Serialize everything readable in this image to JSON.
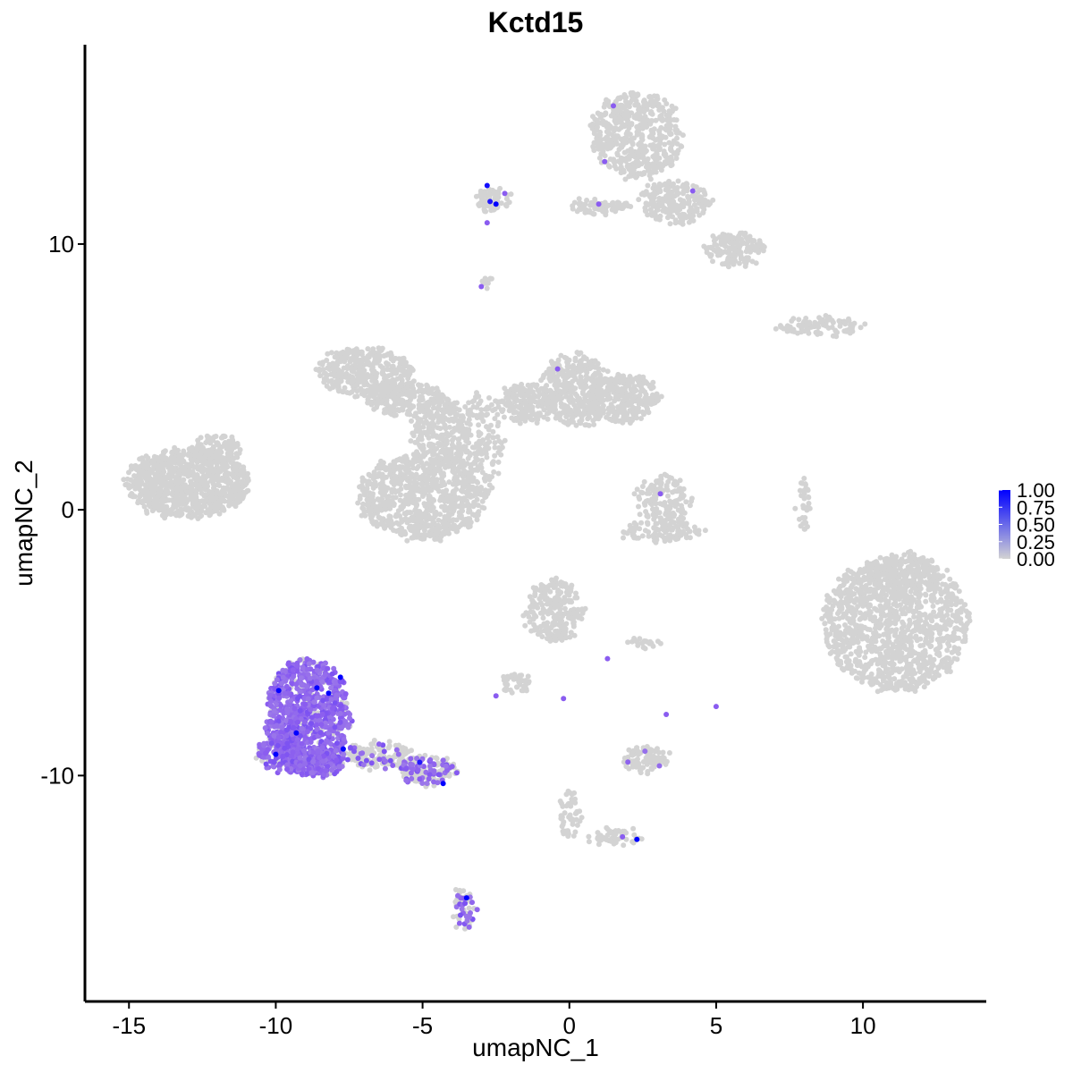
{
  "chart_data": {
    "type": "scatter",
    "title": "Kctd15",
    "xlabel": "umapNC_1",
    "ylabel": "umapNC_2",
    "xlim": [
      -16.5,
      14.2
    ],
    "ylim": [
      -18.5,
      17.5
    ],
    "x_ticks": [
      -15,
      -10,
      -5,
      0,
      5,
      10
    ],
    "x_tick_labels": [
      "-15",
      "-10",
      "-5",
      "0",
      "5",
      "10"
    ],
    "y_ticks": [
      -10,
      0,
      10
    ],
    "y_tick_labels": [
      "-10",
      "0",
      "10"
    ],
    "grid": false,
    "legend": {
      "placement": "right",
      "type": "colorbar",
      "min": 0,
      "max": 1,
      "labels": [
        "1.00",
        "0.75",
        "0.50",
        "0.25",
        "0.00"
      ],
      "low_color": "#d3d3d3",
      "high_color": "#0000ff"
    },
    "colors": {
      "background_cells": "#d3d3d3",
      "mid_expression": "#8a5cf0",
      "high_expression": "#1a00ee",
      "max_expression": "#0000ff"
    },
    "clusters": [
      {
        "cx": -13.0,
        "cy": 1.0,
        "rx": 2.1,
        "ry": 1.3,
        "n": 900,
        "expr": 0
      },
      {
        "cx": -12.0,
        "cy": 2.3,
        "rx": 0.8,
        "ry": 0.5,
        "n": 120,
        "expr": 0
      },
      {
        "cx": -7.0,
        "cy": 5.2,
        "rx": 1.6,
        "ry": 0.9,
        "n": 350,
        "expr": 0
      },
      {
        "cx": -5.7,
        "cy": 4.2,
        "rx": 1.3,
        "ry": 0.7,
        "n": 220,
        "expr": 0
      },
      {
        "cx": -4.4,
        "cy": 3.0,
        "rx": 1.0,
        "ry": 1.3,
        "n": 260,
        "expr": 0
      },
      {
        "cx": -5.0,
        "cy": 0.5,
        "rx": 2.2,
        "ry": 1.6,
        "n": 800,
        "expr": 0
      },
      {
        "cx": -3.0,
        "cy": 2.5,
        "rx": 0.7,
        "ry": 2.0,
        "n": 160,
        "expr": 0
      },
      {
        "cx": -1.5,
        "cy": 4.0,
        "rx": 1.0,
        "ry": 0.7,
        "n": 200,
        "expr": 0
      },
      {
        "cx": 0.2,
        "cy": 4.5,
        "rx": 1.2,
        "ry": 1.4,
        "n": 360,
        "expr": 0
      },
      {
        "cx": 1.8,
        "cy": 4.2,
        "rx": 1.3,
        "ry": 0.9,
        "n": 300,
        "expr": 0
      },
      {
        "cx": 2.3,
        "cy": 14.1,
        "rx": 1.6,
        "ry": 1.6,
        "n": 520,
        "expr": 0
      },
      {
        "cx": 3.6,
        "cy": 11.6,
        "rx": 1.2,
        "ry": 0.8,
        "n": 220,
        "expr": 0
      },
      {
        "cx": 5.6,
        "cy": 9.8,
        "rx": 1.0,
        "ry": 0.6,
        "n": 160,
        "expr": 0
      },
      {
        "cx": 1.0,
        "cy": 11.4,
        "rx": 1.0,
        "ry": 0.25,
        "n": 90,
        "expr": 0
      },
      {
        "cx": -2.6,
        "cy": 11.6,
        "rx": 0.6,
        "ry": 0.5,
        "n": 70,
        "expr": 0
      },
      {
        "cx": -2.8,
        "cy": 8.5,
        "rx": 0.25,
        "ry": 0.25,
        "n": 10,
        "expr": 0
      },
      {
        "cx": 8.5,
        "cy": 6.9,
        "rx": 1.5,
        "ry": 0.35,
        "n": 90,
        "expr": 0
      },
      {
        "cx": 3.2,
        "cy": 0.4,
        "rx": 1.0,
        "ry": 0.9,
        "n": 140,
        "expr": 0
      },
      {
        "cx": 3.2,
        "cy": -0.8,
        "rx": 1.4,
        "ry": 0.4,
        "n": 110,
        "expr": 0
      },
      {
        "cx": 8.0,
        "cy": 0.2,
        "rx": 0.2,
        "ry": 1.0,
        "n": 35,
        "expr": 0
      },
      {
        "cx": 11.1,
        "cy": -4.3,
        "rx": 2.5,
        "ry": 2.5,
        "n": 1200,
        "expr": 0
      },
      {
        "cx": 11.4,
        "cy": -2.4,
        "rx": 1.4,
        "ry": 0.8,
        "n": 160,
        "expr": 0
      },
      {
        "cx": -0.5,
        "cy": -3.8,
        "rx": 1.0,
        "ry": 1.2,
        "n": 240,
        "expr": 0
      },
      {
        "cx": -1.8,
        "cy": -6.5,
        "rx": 0.6,
        "ry": 0.35,
        "n": 40,
        "expr": 0
      },
      {
        "cx": 2.6,
        "cy": -5.0,
        "rx": 0.6,
        "ry": 0.2,
        "n": 20,
        "expr": 0
      },
      {
        "cx": 2.6,
        "cy": -9.4,
        "rx": 0.8,
        "ry": 0.5,
        "n": 90,
        "expr": 0.05
      },
      {
        "cx": 0.0,
        "cy": -11.5,
        "rx": 0.35,
        "ry": 0.9,
        "n": 50,
        "expr": 0.05
      },
      {
        "cx": 1.5,
        "cy": -12.3,
        "rx": 1.0,
        "ry": 0.3,
        "n": 50,
        "expr": 0.05
      },
      {
        "cx": -3.6,
        "cy": -15.0,
        "rx": 0.35,
        "ry": 0.8,
        "n": 60,
        "expr": 0.3
      },
      {
        "cx": -6.5,
        "cy": -9.2,
        "rx": 1.2,
        "ry": 0.5,
        "n": 160,
        "expr": 0.15
      },
      {
        "cx": -4.8,
        "cy": -9.8,
        "rx": 1.0,
        "ry": 0.5,
        "n": 170,
        "expr": 0.35
      },
      {
        "cx": -8.9,
        "cy": -7.8,
        "rx": 1.45,
        "ry": 2.2,
        "n": 900,
        "expr": 0.85
      },
      {
        "cx": -9.7,
        "cy": -9.1,
        "rx": 0.9,
        "ry": 0.7,
        "n": 200,
        "expr": 0.8
      },
      {
        "cx": -8.3,
        "cy": -9.5,
        "rx": 0.7,
        "ry": 0.5,
        "n": 130,
        "expr": 0.7
      }
    ],
    "highlighted_cells": [
      {
        "x": -2.8,
        "y": 12.2,
        "value": 0.95
      },
      {
        "x": -2.7,
        "y": 11.6,
        "value": 0.9
      },
      {
        "x": -2.5,
        "y": 11.5,
        "value": 1.0
      },
      {
        "x": -2.2,
        "y": 11.9,
        "value": 0.6
      },
      {
        "x": -2.8,
        "y": 10.8,
        "value": 0.6
      },
      {
        "x": -3.0,
        "y": 8.4,
        "value": 0.6
      },
      {
        "x": 1.5,
        "y": 15.2,
        "value": 0.6
      },
      {
        "x": 1.2,
        "y": 13.1,
        "value": 0.6
      },
      {
        "x": 1.0,
        "y": 11.5,
        "value": 0.6
      },
      {
        "x": 4.2,
        "y": 12.0,
        "value": 0.6
      },
      {
        "x": -0.4,
        "y": 5.3,
        "value": 0.6
      },
      {
        "x": 3.1,
        "y": 0.6,
        "value": 0.6
      },
      {
        "x": -9.9,
        "y": -6.8,
        "value": 1.0
      },
      {
        "x": -8.6,
        "y": -6.7,
        "value": 1.0
      },
      {
        "x": -8.2,
        "y": -6.9,
        "value": 1.0
      },
      {
        "x": -9.3,
        "y": -8.4,
        "value": 1.0
      },
      {
        "x": -10.0,
        "y": -9.2,
        "value": 1.0
      },
      {
        "x": -7.7,
        "y": -9.0,
        "value": 1.0
      },
      {
        "x": -7.8,
        "y": -6.3,
        "value": 1.0
      },
      {
        "x": -4.3,
        "y": -10.3,
        "value": 1.0
      },
      {
        "x": -3.5,
        "y": -14.6,
        "value": 1.0
      },
      {
        "x": 2.3,
        "y": -12.4,
        "value": 1.0
      },
      {
        "x": -5.1,
        "y": -9.5,
        "value": 0.9
      },
      {
        "x": 1.3,
        "y": -5.6,
        "value": 0.6
      },
      {
        "x": 5.0,
        "y": -7.4,
        "value": 0.6
      },
      {
        "x": 3.3,
        "y": -7.7,
        "value": 0.6
      },
      {
        "x": -0.2,
        "y": -7.1,
        "value": 0.6
      },
      {
        "x": -2.5,
        "y": -7.0,
        "value": 0.6
      }
    ]
  }
}
